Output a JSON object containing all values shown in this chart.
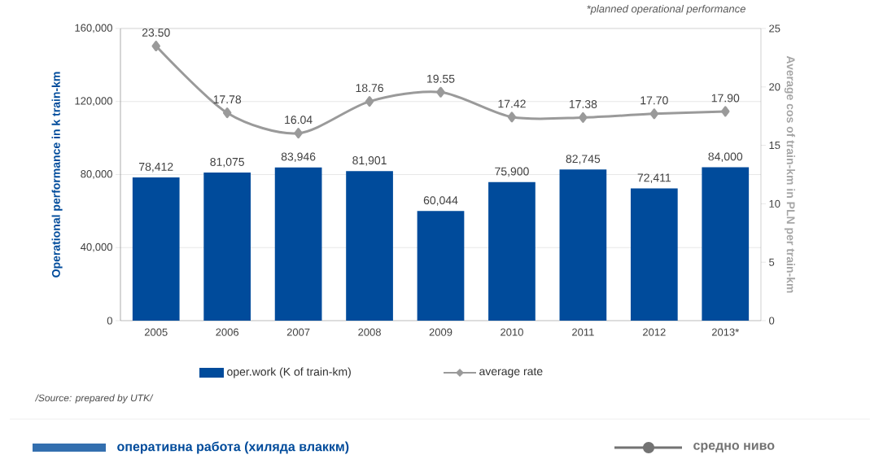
{
  "chart_data": {
    "type": "bar",
    "categories": [
      "2005",
      "2006",
      "2007",
      "2008",
      "2009",
      "2010",
      "2011",
      "2012",
      "2013*"
    ],
    "ylabel": "Operational performance in k train-km",
    "y2label": "Average cos of train-km in PLN per train-km",
    "ylim": [
      0,
      160000
    ],
    "yticks": [
      0,
      {
        "value": 40000,
        "label": "40,000"
      },
      {
        "value": 80000,
        "label": "80,000"
      },
      {
        "value": 120000,
        "label": "120,000"
      },
      {
        "value": 160000,
        "label": "160,000"
      }
    ],
    "y2lim": [
      0,
      25
    ],
    "y2ticks": [
      0,
      5,
      10,
      15,
      20,
      25
    ],
    "grid": "y",
    "legend": "bottom",
    "series": [
      {
        "name": "oper.work (K of train-km)",
        "color": "#004b9b",
        "values": [
          78412,
          81075,
          83946,
          81901,
          60044,
          75900,
          82745,
          72411,
          84000
        ],
        "value_labels": [
          "78,412",
          "81,075",
          "83,946",
          "81,901",
          "60,044",
          "75,900",
          "82,745",
          "72,411",
          "84,000"
        ]
      },
      {
        "name": "average rate",
        "type": "line",
        "axis": "y2",
        "color": "#9a9a9a",
        "marker": "diamond",
        "values": [
          23.5,
          17.78,
          16.04,
          18.76,
          19.55,
          17.42,
          17.38,
          17.7,
          17.9
        ],
        "value_labels": [
          "23.50",
          "17.78",
          "16.04",
          "18.76",
          "19.55",
          "17.42",
          "17.38",
          "17.70",
          "17.90"
        ]
      }
    ],
    "annotations": [
      "*planned operational performance",
      "/Source: prepared by UTK/",
      "оперативна работа (хиляда влаккм)",
      "средно ниво"
    ]
  }
}
